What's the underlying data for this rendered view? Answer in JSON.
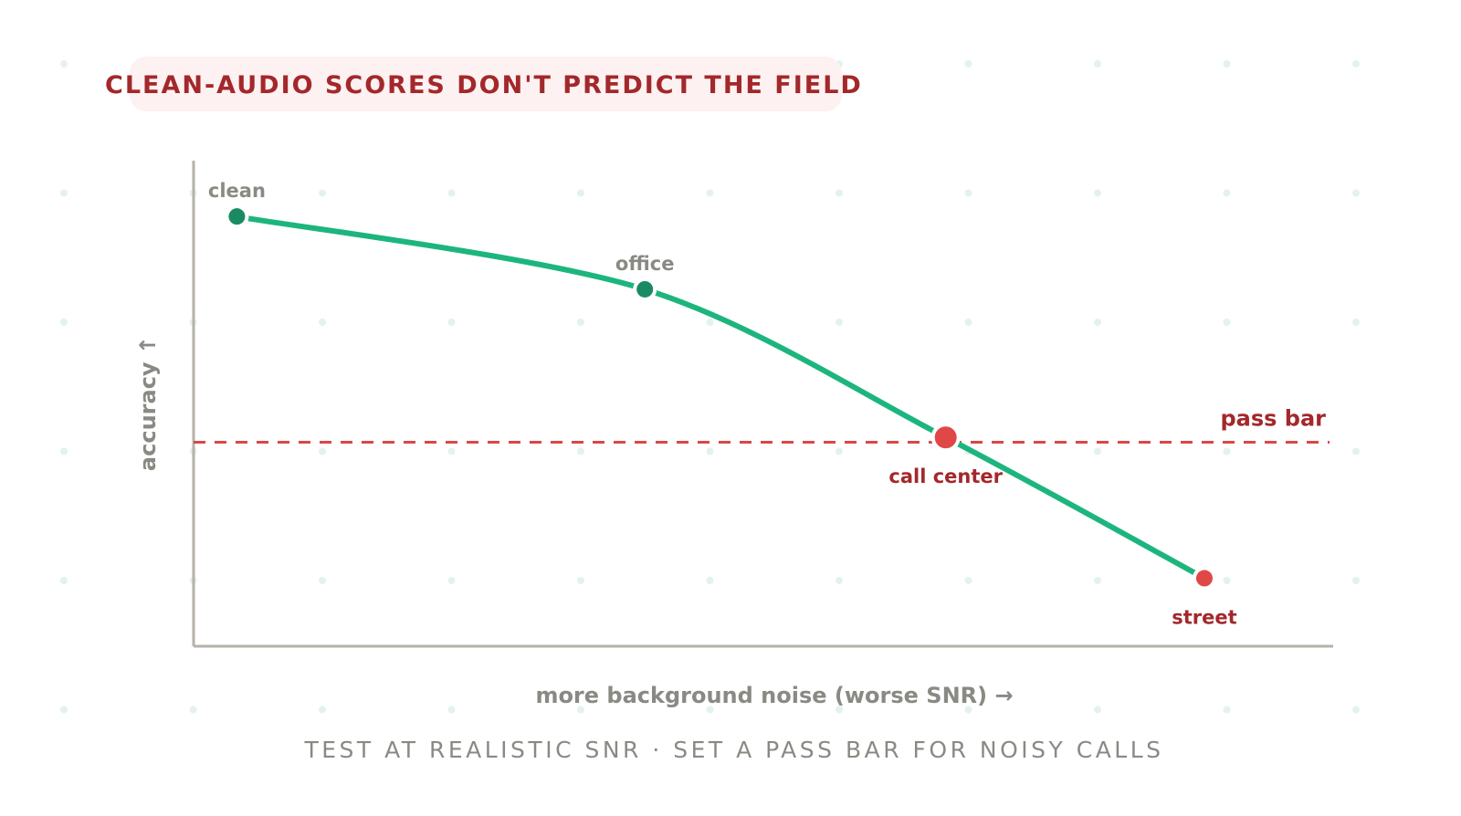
{
  "title": "CLEAN-AUDIO SCORES DON'T PREDICT THE FIELD",
  "footer": "TEST AT REALISTIC SNR · SET A PASS BAR FOR NOISY CALLS",
  "colors": {
    "title": "#a3282b",
    "title_background": "#fdf1f1",
    "curve": "#1db57e",
    "point_above_bar": "#1a8a63",
    "point_below_bar": "#e04848",
    "pass_bar": "#d94848",
    "axis": "#b5b2aa",
    "muted_text": "#8a8a84"
  },
  "chart_data": {
    "type": "line",
    "xlabel": "more background noise (worse SNR) →",
    "ylabel": "accuracy ↑",
    "xlim": [
      0,
      100
    ],
    "ylim": [
      0,
      100
    ],
    "grid": "dotted background",
    "pass_bar": {
      "label": "pass bar",
      "value": 42
    },
    "points": [
      {
        "label": "clean",
        "x": 3.8,
        "y": 88.5,
        "status": "above"
      },
      {
        "label": "office",
        "x": 39.6,
        "y": 73.5,
        "status": "above"
      },
      {
        "label": "call center",
        "x": 66.0,
        "y": 43.0,
        "status": "at"
      },
      {
        "label": "street",
        "x": 88.7,
        "y": 14.0,
        "status": "below"
      }
    ]
  }
}
